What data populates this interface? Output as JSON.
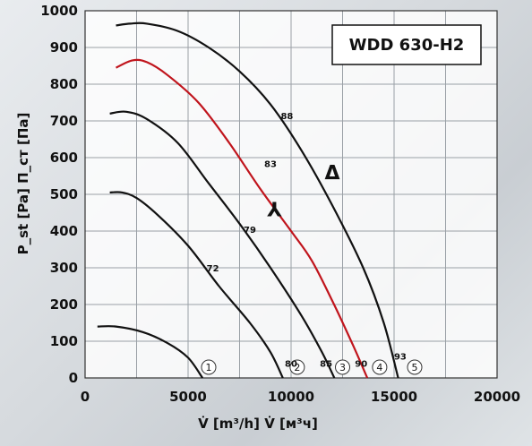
{
  "chart_data": {
    "type": "line",
    "title": "",
    "model": "WDD 630-H2",
    "xlabel": "V̇ [m³/h]  V̇ [м³ч]",
    "ylabel": "P_st [Pa]  П_ст [Па]",
    "xlim": [
      0,
      20000
    ],
    "ylim": [
      0,
      1000
    ],
    "x_ticks": [
      "0",
      "5000",
      "10000",
      "15000",
      "20000"
    ],
    "y_ticks": [
      "0",
      "100",
      "200",
      "300",
      "400",
      "500",
      "600",
      "700",
      "800",
      "900",
      "1000"
    ],
    "grid": true,
    "series": [
      {
        "id": "1",
        "line": "black",
        "points": [
          [
            600,
            140
          ],
          [
            1500,
            140
          ],
          [
            2800,
            125
          ],
          [
            4000,
            95
          ],
          [
            5000,
            55
          ],
          [
            5700,
            0
          ]
        ],
        "marker": {
          "text": "1",
          "x": 6000,
          "y": 0
        }
      },
      {
        "id": "2",
        "line": "black",
        "points": [
          [
            1200,
            505
          ],
          [
            1800,
            505
          ],
          [
            2500,
            490
          ],
          [
            3500,
            445
          ],
          [
            5000,
            360
          ],
          [
            6500,
            250
          ],
          [
            8000,
            150
          ],
          [
            9000,
            70
          ],
          [
            9600,
            0
          ]
        ],
        "marker": {
          "text": "2",
          "x": 10300,
          "y": 0
        }
      },
      {
        "id": "3",
        "line": "black",
        "points": [
          [
            1200,
            720
          ],
          [
            2000,
            725
          ],
          [
            3000,
            705
          ],
          [
            4500,
            640
          ],
          [
            6000,
            530
          ],
          [
            7500,
            420
          ],
          [
            9000,
            300
          ],
          [
            10500,
            170
          ],
          [
            11500,
            70
          ],
          [
            12100,
            0
          ]
        ],
        "marker": {
          "text": "3",
          "x": 12500,
          "y": 0
        }
      },
      {
        "id": "4",
        "line": "red",
        "points": [
          [
            1500,
            845
          ],
          [
            2300,
            865
          ],
          [
            3000,
            860
          ],
          [
            4000,
            825
          ],
          [
            5500,
            750
          ],
          [
            7000,
            640
          ],
          [
            8500,
            515
          ],
          [
            10000,
            400
          ],
          [
            11000,
            320
          ],
          [
            12000,
            210
          ],
          [
            13000,
            90
          ],
          [
            13700,
            0
          ]
        ],
        "marker": {
          "text": "4",
          "x": 14300,
          "y": 0
        }
      },
      {
        "id": "5",
        "line": "black",
        "points": [
          [
            1500,
            960
          ],
          [
            2200,
            965
          ],
          [
            3000,
            965
          ],
          [
            4500,
            945
          ],
          [
            6000,
            900
          ],
          [
            7500,
            835
          ],
          [
            9000,
            745
          ],
          [
            10500,
            620
          ],
          [
            12000,
            470
          ],
          [
            13500,
            300
          ],
          [
            14500,
            150
          ],
          [
            15200,
            0
          ]
        ],
        "marker": {
          "text": "5",
          "x": 16000,
          "y": 0
        }
      }
    ],
    "efficiency_labels": [
      {
        "text": "72",
        "x": 6200,
        "y": 290
      },
      {
        "text": "79",
        "x": 8000,
        "y": 395
      },
      {
        "text": "83",
        "x": 9000,
        "y": 575
      },
      {
        "text": "88",
        "x": 9800,
        "y": 705
      },
      {
        "text": "80",
        "x": 10000,
        "y": 30
      },
      {
        "text": "85",
        "x": 11700,
        "y": 30
      },
      {
        "text": "90",
        "x": 13400,
        "y": 30
      },
      {
        "text": "93",
        "x": 15300,
        "y": 50
      }
    ],
    "markers": [
      {
        "text": "Δ",
        "x": 12000,
        "y": 540
      },
      {
        "text": "⅄",
        "x": 9200,
        "y": 440
      }
    ]
  }
}
